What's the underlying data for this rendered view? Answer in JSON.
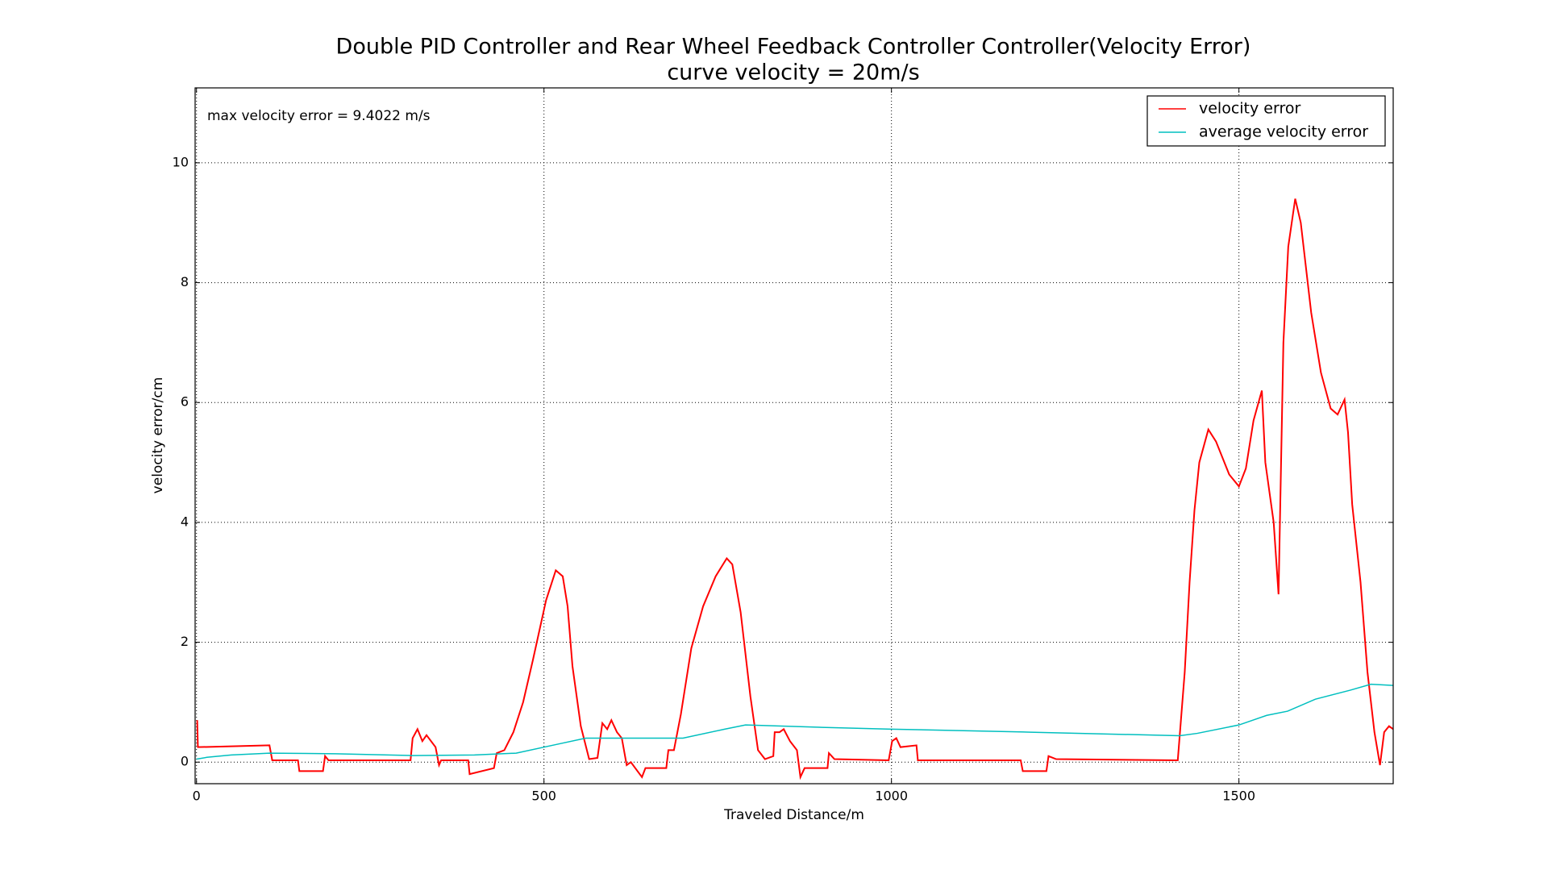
{
  "chart_data": {
    "type": "line",
    "title": "Double PID Controller and Rear Wheel Feedback Controller Controller(Velocity Error)",
    "subtitle": "curve velocity = 20m/s",
    "annotation": "max velocity error = 9.4022 m/s",
    "x_label": "Traveled Distance/m",
    "y_label": "velocity error/cm",
    "xlim": [
      -2,
      1722
    ],
    "ylim": [
      -0.36,
      11.25
    ],
    "xticks": [
      0,
      500,
      1000,
      1500
    ],
    "yticks": [
      0,
      2,
      4,
      6,
      8,
      10
    ],
    "grid": true,
    "legend": "upper right",
    "series": [
      {
        "name": "velocity error",
        "color": "#ff0000",
        "x": [
          1,
          2,
          105,
          109,
          146,
          148,
          182,
          185,
          190,
          308,
          311,
          318,
          325,
          331,
          344,
          349,
          352,
          391,
          393,
          428,
          432,
          443,
          456,
          470,
          484,
          503,
          517,
          527,
          534,
          541,
          553,
          565,
          577,
          584,
          591,
          597,
          605,
          612,
          619,
          625,
          641,
          646,
          676,
          679,
          687,
          697,
          712,
          729,
          747,
          763,
          771,
          783,
          797,
          808,
          818,
          830,
          832,
          839,
          845,
          854,
          864,
          869,
          875,
          908,
          910,
          918,
          996,
          1001,
          1007,
          1013,
          1036,
          1038,
          1186,
          1189,
          1223,
          1226,
          1237,
          1412,
          1422,
          1429,
          1436,
          1443,
          1456,
          1467,
          1486,
          1500,
          1510,
          1521,
          1533,
          1538,
          1550,
          1557,
          1564,
          1571,
          1581,
          1589,
          1604,
          1618,
          1632,
          1642,
          1652,
          1657,
          1663,
          1675,
          1685,
          1695,
          1703,
          1709,
          1716,
          1722
        ],
        "values": [
          0.7,
          0.25,
          0.28,
          0.03,
          0.03,
          -0.15,
          -0.15,
          0.1,
          0.03,
          0.03,
          0.4,
          0.55,
          0.35,
          0.45,
          0.25,
          -0.05,
          0.03,
          0.03,
          -0.2,
          -0.1,
          0.15,
          0.2,
          0.5,
          1.0,
          1.7,
          2.7,
          3.2,
          3.1,
          2.6,
          1.6,
          0.6,
          0.05,
          0.07,
          0.65,
          0.55,
          0.7,
          0.5,
          0.4,
          -0.05,
          0.0,
          -0.25,
          -0.1,
          -0.1,
          0.2,
          0.2,
          0.8,
          1.9,
          2.6,
          3.1,
          3.4,
          3.3,
          2.5,
          1.1,
          0.2,
          0.05,
          0.1,
          0.5,
          0.5,
          0.55,
          0.35,
          0.2,
          -0.25,
          -0.1,
          -0.1,
          0.15,
          0.05,
          0.03,
          0.35,
          0.4,
          0.25,
          0.28,
          0.03,
          0.03,
          -0.15,
          -0.15,
          0.1,
          0.05,
          0.03,
          1.5,
          3.0,
          4.2,
          5.0,
          5.55,
          5.35,
          4.8,
          4.6,
          4.9,
          5.7,
          6.2,
          5.0,
          4.0,
          2.8,
          7.0,
          8.6,
          9.4,
          9.0,
          7.5,
          6.5,
          5.9,
          5.8,
          6.05,
          5.5,
          4.3,
          3.0,
          1.5,
          0.5,
          -0.05,
          0.5,
          0.6,
          0.55
        ]
      },
      {
        "name": "average velocity error",
        "color": "#00bfbf",
        "x": [
          0,
          15,
          50,
          105,
          200,
          310,
          400,
          460,
          520,
          560,
          700,
          760,
          790,
          900,
          1000,
          1200,
          1415,
          1440,
          1500,
          1540,
          1570,
          1610,
          1660,
          1690,
          1722
        ],
        "values": [
          0.05,
          0.08,
          0.12,
          0.15,
          0.14,
          0.11,
          0.12,
          0.15,
          0.3,
          0.4,
          0.4,
          0.55,
          0.62,
          0.58,
          0.55,
          0.5,
          0.44,
          0.48,
          0.62,
          0.78,
          0.85,
          1.05,
          1.2,
          1.3,
          1.28
        ]
      }
    ]
  }
}
